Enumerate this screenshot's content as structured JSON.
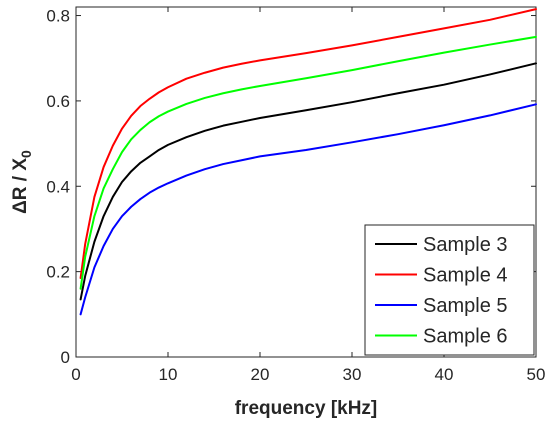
{
  "chart_data": {
    "type": "line",
    "title": "",
    "xlabel": "frequency [kHz]",
    "ylabel_main": "ΔR / X",
    "ylabel_sub": "0",
    "xlim": [
      0,
      50
    ],
    "ylim": [
      0,
      0.82
    ],
    "xticks": [
      "0",
      "10",
      "20",
      "30",
      "40",
      "50"
    ],
    "yticks": [
      "0",
      "0.2",
      "0.4",
      "0.6",
      "0.8"
    ],
    "grid": false,
    "legend_position": "bottom-right",
    "x": [
      0.5,
      1,
      2,
      3,
      4,
      5,
      6,
      7,
      8,
      9,
      10,
      12,
      14,
      16,
      18,
      20,
      25,
      30,
      35,
      40,
      45,
      50
    ],
    "series": [
      {
        "name": "Sample 3",
        "color": "#000000",
        "values": [
          0.135,
          0.19,
          0.27,
          0.33,
          0.375,
          0.41,
          0.435,
          0.455,
          0.47,
          0.485,
          0.497,
          0.515,
          0.53,
          0.542,
          0.551,
          0.56,
          0.578,
          0.597,
          0.618,
          0.638,
          0.662,
          0.688
        ]
      },
      {
        "name": "Sample 4",
        "color": "#ff0000",
        "values": [
          0.185,
          0.265,
          0.375,
          0.445,
          0.495,
          0.535,
          0.565,
          0.588,
          0.605,
          0.62,
          0.632,
          0.652,
          0.666,
          0.678,
          0.687,
          0.695,
          0.712,
          0.73,
          0.75,
          0.77,
          0.79,
          0.815
        ]
      },
      {
        "name": "Sample 5",
        "color": "#0000ff",
        "values": [
          0.1,
          0.14,
          0.21,
          0.26,
          0.3,
          0.33,
          0.352,
          0.37,
          0.385,
          0.397,
          0.407,
          0.425,
          0.44,
          0.452,
          0.461,
          0.47,
          0.485,
          0.503,
          0.522,
          0.543,
          0.566,
          0.592
        ]
      },
      {
        "name": "Sample 6",
        "color": "#00ff00",
        "values": [
          0.16,
          0.235,
          0.33,
          0.395,
          0.44,
          0.48,
          0.51,
          0.532,
          0.55,
          0.564,
          0.575,
          0.593,
          0.607,
          0.618,
          0.627,
          0.635,
          0.653,
          0.672,
          0.693,
          0.713,
          0.732,
          0.75
        ]
      }
    ]
  }
}
